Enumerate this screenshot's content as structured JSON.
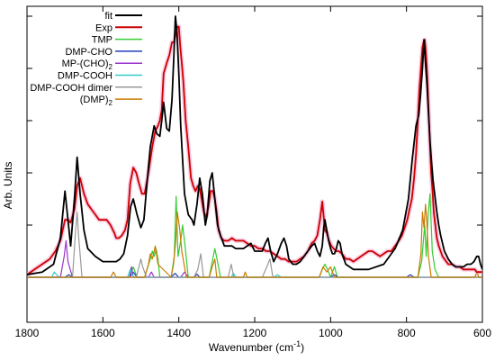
{
  "chart_data": {
    "type": "line",
    "xlabel": "Wavenumber (cm",
    "xlabel_sup": "-1",
    "xlabel_tail": ")",
    "ylabel": "Arb. Units",
    "xlim": [
      1800,
      600
    ],
    "x_reversed": true,
    "ylim": [
      0,
      1
    ],
    "x_ticks": [
      1800,
      1600,
      1400,
      1200,
      1000,
      800,
      600
    ],
    "x_tick_labels": [
      "1800",
      "1600",
      "1400",
      "1200",
      "1000",
      "800",
      "600"
    ],
    "y_ticks": [
      0,
      0.2,
      0.4,
      0.6,
      0.8,
      1.0
    ],
    "y_tick_labels_shown": false,
    "grid": false,
    "legend_position": "top-left",
    "series": [
      {
        "name": "fit",
        "color": "#000000",
        "x": [
          1800,
          1760,
          1730,
          1712,
          1700,
          1692,
          1685,
          1675,
          1668,
          1660,
          1650,
          1640,
          1620,
          1600,
          1580,
          1565,
          1555,
          1545,
          1535,
          1527,
          1520,
          1510,
          1500,
          1492,
          1485,
          1475,
          1465,
          1458,
          1450,
          1445,
          1440,
          1432,
          1425,
          1418,
          1413,
          1409,
          1405,
          1400,
          1395,
          1385,
          1375,
          1365,
          1360,
          1352,
          1345,
          1338,
          1330,
          1325,
          1318,
          1312,
          1305,
          1298,
          1290,
          1280,
          1270,
          1260,
          1250,
          1240,
          1230,
          1220,
          1210,
          1200,
          1190,
          1180,
          1172,
          1165,
          1158,
          1150,
          1140,
          1130,
          1123,
          1116,
          1110,
          1100,
          1090,
          1080,
          1070,
          1060,
          1050,
          1042,
          1035,
          1028,
          1022,
          1018,
          1015,
          1010,
          1005,
          1000,
          995,
          990,
          985,
          980,
          975,
          970,
          960,
          940,
          900,
          860,
          830,
          810,
          795,
          785,
          775,
          768,
          763,
          758,
          754,
          750,
          746,
          742,
          738,
          734,
          730,
          725,
          720,
          715,
          710,
          700,
          690,
          680,
          670,
          660,
          650,
          640,
          630,
          622,
          615,
          610,
          605,
          600
        ],
        "y": [
          0.01,
          0.02,
          0.05,
          0.15,
          0.33,
          0.22,
          0.12,
          0.3,
          0.46,
          0.32,
          0.18,
          0.11,
          0.08,
          0.06,
          0.06,
          0.06,
          0.07,
          0.09,
          0.16,
          0.27,
          0.3,
          0.24,
          0.19,
          0.22,
          0.34,
          0.5,
          0.58,
          0.55,
          0.54,
          0.6,
          0.67,
          0.57,
          0.56,
          0.68,
          0.85,
          1.0,
          0.94,
          0.78,
          0.58,
          0.32,
          0.24,
          0.22,
          0.2,
          0.28,
          0.38,
          0.32,
          0.2,
          0.24,
          0.37,
          0.4,
          0.3,
          0.2,
          0.16,
          0.12,
          0.12,
          0.12,
          0.11,
          0.11,
          0.11,
          0.12,
          0.13,
          0.1,
          0.1,
          0.1,
          0.13,
          0.15,
          0.1,
          0.06,
          0.09,
          0.13,
          0.15,
          0.12,
          0.07,
          0.05,
          0.05,
          0.06,
          0.08,
          0.1,
          0.12,
          0.13,
          0.1,
          0.08,
          0.12,
          0.19,
          0.22,
          0.18,
          0.14,
          0.11,
          0.09,
          0.09,
          0.11,
          0.14,
          0.13,
          0.09,
          0.05,
          0.03,
          0.03,
          0.05,
          0.11,
          0.18,
          0.3,
          0.45,
          0.58,
          0.62,
          0.7,
          0.8,
          0.91,
          0.82,
          0.74,
          0.63,
          0.52,
          0.44,
          0.37,
          0.31,
          0.25,
          0.2,
          0.16,
          0.1,
          0.07,
          0.05,
          0.04,
          0.04,
          0.04,
          0.05,
          0.05,
          0.06,
          0.08,
          0.08,
          0.05,
          0.03
        ]
      },
      {
        "name": "Exp",
        "color": "#cc0000",
        "x": [
          1800,
          1780,
          1760,
          1740,
          1725,
          1712,
          1700,
          1692,
          1685,
          1675,
          1668,
          1660,
          1650,
          1640,
          1630,
          1620,
          1610,
          1600,
          1590,
          1580,
          1570,
          1565,
          1558,
          1550,
          1542,
          1535,
          1528,
          1520,
          1512,
          1505,
          1497,
          1490,
          1480,
          1470,
          1462,
          1455,
          1450,
          1445,
          1440,
          1432,
          1425,
          1418,
          1413,
          1408,
          1404,
          1400,
          1396,
          1392,
          1388,
          1382,
          1375,
          1368,
          1362,
          1356,
          1350,
          1345,
          1340,
          1334,
          1328,
          1322,
          1316,
          1310,
          1305,
          1300,
          1295,
          1288,
          1280,
          1270,
          1260,
          1250,
          1240,
          1230,
          1220,
          1210,
          1200,
          1190,
          1180,
          1170,
          1160,
          1150,
          1140,
          1130,
          1120,
          1110,
          1100,
          1090,
          1080,
          1070,
          1060,
          1050,
          1042,
          1035,
          1028,
          1022,
          1018,
          1015,
          1010,
          1004,
          998,
          992,
          985,
          978,
          970,
          960,
          950,
          940,
          930,
          920,
          910,
          900,
          890,
          880,
          870,
          860,
          850,
          840,
          830,
          820,
          812,
          805,
          798,
          792,
          786,
          780,
          775,
          770,
          766,
          762,
          758,
          755,
          752,
          750,
          748,
          745,
          742,
          738,
          735,
          731,
          728,
          724,
          720,
          715,
          710,
          705,
          700,
          695,
          690,
          680,
          670,
          660,
          650,
          640,
          630,
          620,
          615,
          610,
          605,
          600
        ],
        "y": [
          0.01,
          0.03,
          0.05,
          0.07,
          0.1,
          0.14,
          0.22,
          0.22,
          0.21,
          0.26,
          0.35,
          0.38,
          0.32,
          0.28,
          0.26,
          0.24,
          0.22,
          0.22,
          0.22,
          0.2,
          0.17,
          0.15,
          0.15,
          0.16,
          0.18,
          0.22,
          0.36,
          0.42,
          0.4,
          0.36,
          0.32,
          0.32,
          0.4,
          0.5,
          0.56,
          0.58,
          0.6,
          0.64,
          0.78,
          0.82,
          0.85,
          0.9,
          0.9,
          0.93,
          0.96,
          0.96,
          0.88,
          0.82,
          0.75,
          0.6,
          0.5,
          0.38,
          0.35,
          0.33,
          0.35,
          0.34,
          0.3,
          0.25,
          0.23,
          0.27,
          0.33,
          0.33,
          0.3,
          0.25,
          0.18,
          0.15,
          0.14,
          0.14,
          0.15,
          0.14,
          0.14,
          0.14,
          0.13,
          0.12,
          0.12,
          0.11,
          0.11,
          0.1,
          0.1,
          0.09,
          0.08,
          0.07,
          0.07,
          0.06,
          0.06,
          0.06,
          0.07,
          0.08,
          0.1,
          0.13,
          0.14,
          0.16,
          0.22,
          0.29,
          0.23,
          0.18,
          0.17,
          0.14,
          0.12,
          0.11,
          0.1,
          0.1,
          0.09,
          0.07,
          0.07,
          0.06,
          0.07,
          0.08,
          0.09,
          0.1,
          0.1,
          0.09,
          0.08,
          0.09,
          0.1,
          0.1,
          0.12,
          0.14,
          0.16,
          0.19,
          0.22,
          0.26,
          0.3,
          0.38,
          0.47,
          0.6,
          0.72,
          0.8,
          0.88,
          0.9,
          0.91,
          0.88,
          0.84,
          0.76,
          0.65,
          0.5,
          0.4,
          0.32,
          0.25,
          0.2,
          0.15,
          0.12,
          0.1,
          0.08,
          0.07,
          0.06,
          0.05,
          0.05,
          0.04,
          0.04,
          0.03,
          0.03,
          0.03,
          0.03,
          0.02,
          0.02,
          0.02,
          0.02
        ]
      },
      {
        "name": "TMP",
        "color": "#33cc33",
        "x": [
          1800,
          1530,
          1520,
          1510,
          1490,
          1475,
          1470,
          1465,
          1460,
          1455,
          1450,
          1420,
          1412,
          1407,
          1402,
          1395,
          1390,
          1385,
          1375,
          1320,
          1312,
          1305,
          1298,
          1290,
          1200,
          1030,
          1022,
          1015,
          1008,
          1000,
          990,
          982,
          970,
          770,
          760,
          752,
          748,
          743,
          738,
          732,
          725,
          715,
          640,
          620,
          614,
          610,
          600
        ],
        "y": [
          0,
          0,
          0.04,
          0,
          0,
          0.07,
          0.1,
          0.08,
          0.11,
          0.07,
          0,
          0,
          0.08,
          0.31,
          0.08,
          0.14,
          0.2,
          0.14,
          0,
          0,
          0.06,
          0.11,
          0.06,
          0,
          0,
          0,
          0.03,
          0.05,
          0.03,
          0,
          0.04,
          0,
          0,
          0,
          0.06,
          0.2,
          0.08,
          0.24,
          0.32,
          0.1,
          0.03,
          0,
          0,
          0,
          0.02,
          0,
          0
        ]
      },
      {
        "name": "DMP-CHO",
        "color": "#1f3fbf",
        "x": [
          1800,
          1700,
          1690,
          1680,
          1530,
          1520,
          1510,
          1420,
          1410,
          1400,
          1360,
          1352,
          1345,
          1000,
          990,
          980,
          800,
          790,
          780,
          600
        ],
        "y": [
          0,
          0,
          0.01,
          0,
          0,
          0.02,
          0,
          0,
          0.015,
          0,
          0,
          0.012,
          0,
          0,
          0.01,
          0,
          0,
          0.01,
          0,
          0
        ]
      },
      {
        "name": "MP-(CHO)",
        "name_sub": "2",
        "color": "#9933cc",
        "x": [
          1800,
          1712,
          1702,
          1697,
          1692,
          1680,
          1540,
          1530,
          1525,
          1520,
          1500,
          1480,
          1472,
          1465,
          1420,
          1395,
          1385,
          1375,
          1600
        ],
        "y": [
          0,
          0,
          0.08,
          0.14,
          0.06,
          0,
          0,
          0,
          0.04,
          0,
          0,
          0,
          0.02,
          0,
          0,
          0,
          0.02,
          0,
          0
        ]
      },
      {
        "name": "DMP-COOH",
        "color": "#33cccc",
        "x": [
          1800,
          1735,
          1728,
          1722,
          1715,
          1600,
          1535,
          1528,
          1520,
          1400,
          1262,
          1256,
          1250,
          1150,
          1140,
          1130,
          600
        ],
        "y": [
          0,
          0,
          0.02,
          0.01,
          0,
          0,
          0,
          0.03,
          0,
          0,
          0,
          0.015,
          0,
          0,
          0.01,
          0,
          0
        ]
      },
      {
        "name": "DMP-COOH dimer",
        "color": "#999999",
        "x": [
          1800,
          1680,
          1672,
          1668,
          1664,
          1655,
          1620,
          1512,
          1505,
          1500,
          1495,
          1485,
          1360,
          1350,
          1342,
          1335,
          1270,
          1262,
          1255,
          1180,
          1168,
          1160,
          1152,
          1000,
          600
        ],
        "y": [
          0,
          0,
          0.18,
          0.25,
          0.16,
          0,
          0,
          0,
          0.04,
          0.07,
          0.04,
          0,
          0,
          0.03,
          0.09,
          0,
          0,
          0.05,
          0,
          0,
          0.04,
          0.07,
          0,
          0,
          0
        ]
      },
      {
        "name": "(DMP)",
        "name_sub": "2",
        "color": "#cc7a00",
        "x": [
          1800,
          1580,
          1572,
          1565,
          1490,
          1480,
          1475,
          1470,
          1462,
          1455,
          1420,
          1414,
          1408,
          1404,
          1398,
          1392,
          1385,
          1380,
          1320,
          1312,
          1305,
          1300,
          1230,
          1225,
          1220,
          1030,
          1020,
          1010,
          1000,
          990,
          770,
          762,
          758,
          754,
          750,
          746,
          742,
          735,
          620,
          614,
          610,
          600
        ],
        "y": [
          0,
          0,
          0.02,
          0,
          0,
          0.05,
          0.09,
          0.07,
          0.12,
          0.05,
          0,
          0.05,
          0.14,
          0.25,
          0.19,
          0.1,
          0.04,
          0,
          0,
          0.04,
          0.07,
          0,
          0,
          0.02,
          0,
          0,
          0.04,
          0.02,
          0.04,
          0,
          0,
          0.09,
          0.25,
          0.19,
          0.28,
          0.2,
          0.08,
          0,
          0,
          0.02,
          0,
          0
        ]
      }
    ]
  }
}
